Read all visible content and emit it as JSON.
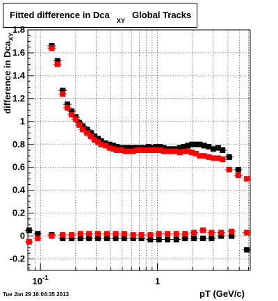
{
  "chart_data": {
    "type": "scatter",
    "title_main": "Fitted difference in Dca",
    "title_sub": "XY",
    "title_tail": "Global Tracks",
    "ylabel": "difference in Dca",
    "ylabel_sub": "XY",
    "xlabel": "pT (GeV/c)",
    "x_scale": "log",
    "xlim": [
      0.078,
      6.2
    ],
    "ylim": [
      -0.3,
      1.8
    ],
    "grid": true,
    "x_tick_labels": [
      {
        "value": 0.1,
        "base": "10",
        "exp": "-1"
      },
      {
        "value": 1,
        "base": "1",
        "exp": ""
      }
    ],
    "y_ticks": [
      -0.2,
      0,
      0.2,
      0.4,
      0.6,
      0.8,
      1,
      1.2,
      1.4,
      1.6,
      1.8
    ],
    "y_tick_labels": [
      "-0.2",
      "0",
      "0.2",
      "0.4",
      "0.6",
      "0.8",
      "1",
      "1.2",
      "1.4",
      "1.6",
      "1.8"
    ],
    "series": [
      {
        "color": "#000000",
        "points": [
          [
            0.125,
            1.66
          ],
          [
            0.14,
            1.53
          ],
          [
            0.155,
            1.27
          ],
          [
            0.17,
            1.15
          ],
          [
            0.185,
            1.09
          ],
          [
            0.2,
            1.04
          ],
          [
            0.215,
            0.99
          ],
          [
            0.23,
            0.96
          ],
          [
            0.25,
            0.93
          ],
          [
            0.27,
            0.9
          ],
          [
            0.29,
            0.87
          ],
          [
            0.31,
            0.85
          ],
          [
            0.33,
            0.83
          ],
          [
            0.36,
            0.81
          ],
          [
            0.39,
            0.8
          ],
          [
            0.42,
            0.79
          ],
          [
            0.45,
            0.78
          ],
          [
            0.49,
            0.77
          ],
          [
            0.53,
            0.77
          ],
          [
            0.57,
            0.77
          ],
          [
            0.62,
            0.77
          ],
          [
            0.67,
            0.77
          ],
          [
            0.72,
            0.77
          ],
          [
            0.78,
            0.77
          ],
          [
            0.84,
            0.78
          ],
          [
            0.9,
            0.77
          ],
          [
            0.97,
            0.78
          ],
          [
            1.05,
            0.78
          ],
          [
            1.13,
            0.77
          ],
          [
            1.22,
            0.76
          ],
          [
            1.32,
            0.76
          ],
          [
            1.43,
            0.76
          ],
          [
            1.55,
            0.77
          ],
          [
            1.68,
            0.78
          ],
          [
            1.82,
            0.79
          ],
          [
            1.97,
            0.8
          ],
          [
            2.13,
            0.8
          ],
          [
            2.3,
            0.8
          ],
          [
            2.5,
            0.79
          ],
          [
            2.75,
            0.78
          ],
          [
            3.0,
            0.76
          ],
          [
            3.3,
            0.77
          ],
          [
            3.6,
            0.75
          ],
          [
            4.1,
            0.69
          ],
          [
            4.9,
            0.58
          ],
          [
            0.08,
            0.05
          ],
          [
            0.095,
            0.02
          ],
          [
            0.125,
            0.01
          ],
          [
            0.155,
            -0.02
          ],
          [
            0.185,
            -0.02
          ],
          [
            0.22,
            -0.02
          ],
          [
            0.26,
            -0.02
          ],
          [
            0.31,
            -0.02
          ],
          [
            0.37,
            -0.02
          ],
          [
            0.44,
            -0.02
          ],
          [
            0.52,
            -0.02
          ],
          [
            0.62,
            -0.02
          ],
          [
            0.73,
            -0.02
          ],
          [
            0.87,
            -0.03
          ],
          [
            1.03,
            -0.03
          ],
          [
            1.22,
            -0.03
          ],
          [
            1.45,
            -0.03
          ],
          [
            1.72,
            -0.02
          ],
          [
            2.05,
            -0.02
          ],
          [
            2.45,
            -0.02
          ],
          [
            2.9,
            -0.02
          ],
          [
            3.5,
            0.0
          ],
          [
            4.3,
            0.0
          ],
          [
            5.8,
            -0.12
          ]
        ]
      },
      {
        "color": "#ff0000",
        "points": [
          [
            0.125,
            1.64
          ],
          [
            0.14,
            1.5
          ],
          [
            0.155,
            1.24
          ],
          [
            0.17,
            1.12
          ],
          [
            0.185,
            1.06
          ],
          [
            0.2,
            1.02
          ],
          [
            0.215,
            0.97
          ],
          [
            0.23,
            0.93
          ],
          [
            0.25,
            0.9
          ],
          [
            0.27,
            0.87
          ],
          [
            0.29,
            0.84
          ],
          [
            0.31,
            0.82
          ],
          [
            0.33,
            0.8
          ],
          [
            0.36,
            0.79
          ],
          [
            0.39,
            0.77
          ],
          [
            0.42,
            0.76
          ],
          [
            0.45,
            0.75
          ],
          [
            0.49,
            0.75
          ],
          [
            0.53,
            0.74
          ],
          [
            0.57,
            0.74
          ],
          [
            0.62,
            0.74
          ],
          [
            0.67,
            0.75
          ],
          [
            0.72,
            0.75
          ],
          [
            0.78,
            0.75
          ],
          [
            0.84,
            0.75
          ],
          [
            0.9,
            0.75
          ],
          [
            0.97,
            0.75
          ],
          [
            1.05,
            0.75
          ],
          [
            1.13,
            0.74
          ],
          [
            1.22,
            0.74
          ],
          [
            1.32,
            0.74
          ],
          [
            1.43,
            0.74
          ],
          [
            1.55,
            0.73
          ],
          [
            1.68,
            0.74
          ],
          [
            1.82,
            0.74
          ],
          [
            1.97,
            0.73
          ],
          [
            2.13,
            0.72
          ],
          [
            2.3,
            0.7
          ],
          [
            2.5,
            0.7
          ],
          [
            2.75,
            0.69
          ],
          [
            3.0,
            0.68
          ],
          [
            3.3,
            0.68
          ],
          [
            3.6,
            0.67
          ],
          [
            4.1,
            0.58
          ],
          [
            4.9,
            0.53
          ],
          [
            5.8,
            0.5
          ],
          [
            0.08,
            -0.05
          ],
          [
            0.095,
            -0.02
          ],
          [
            0.125,
            0.0
          ],
          [
            0.155,
            0.01
          ],
          [
            0.185,
            0.01
          ],
          [
            0.22,
            0.02
          ],
          [
            0.26,
            0.02
          ],
          [
            0.31,
            0.02
          ],
          [
            0.37,
            0.02
          ],
          [
            0.44,
            0.02
          ],
          [
            0.52,
            0.02
          ],
          [
            0.62,
            0.01
          ],
          [
            0.73,
            0.01
          ],
          [
            0.87,
            0.01
          ],
          [
            1.03,
            0.02
          ],
          [
            1.22,
            0.02
          ],
          [
            1.45,
            0.02
          ],
          [
            1.72,
            0.02
          ],
          [
            2.05,
            0.03
          ],
          [
            2.45,
            0.05
          ],
          [
            2.9,
            0.03
          ],
          [
            3.5,
            0.03
          ],
          [
            4.3,
            0.04
          ],
          [
            5.8,
            0.03
          ]
        ]
      }
    ]
  },
  "footer": {
    "timestamp": "Tue Jan 29 16:04:35 2013"
  }
}
